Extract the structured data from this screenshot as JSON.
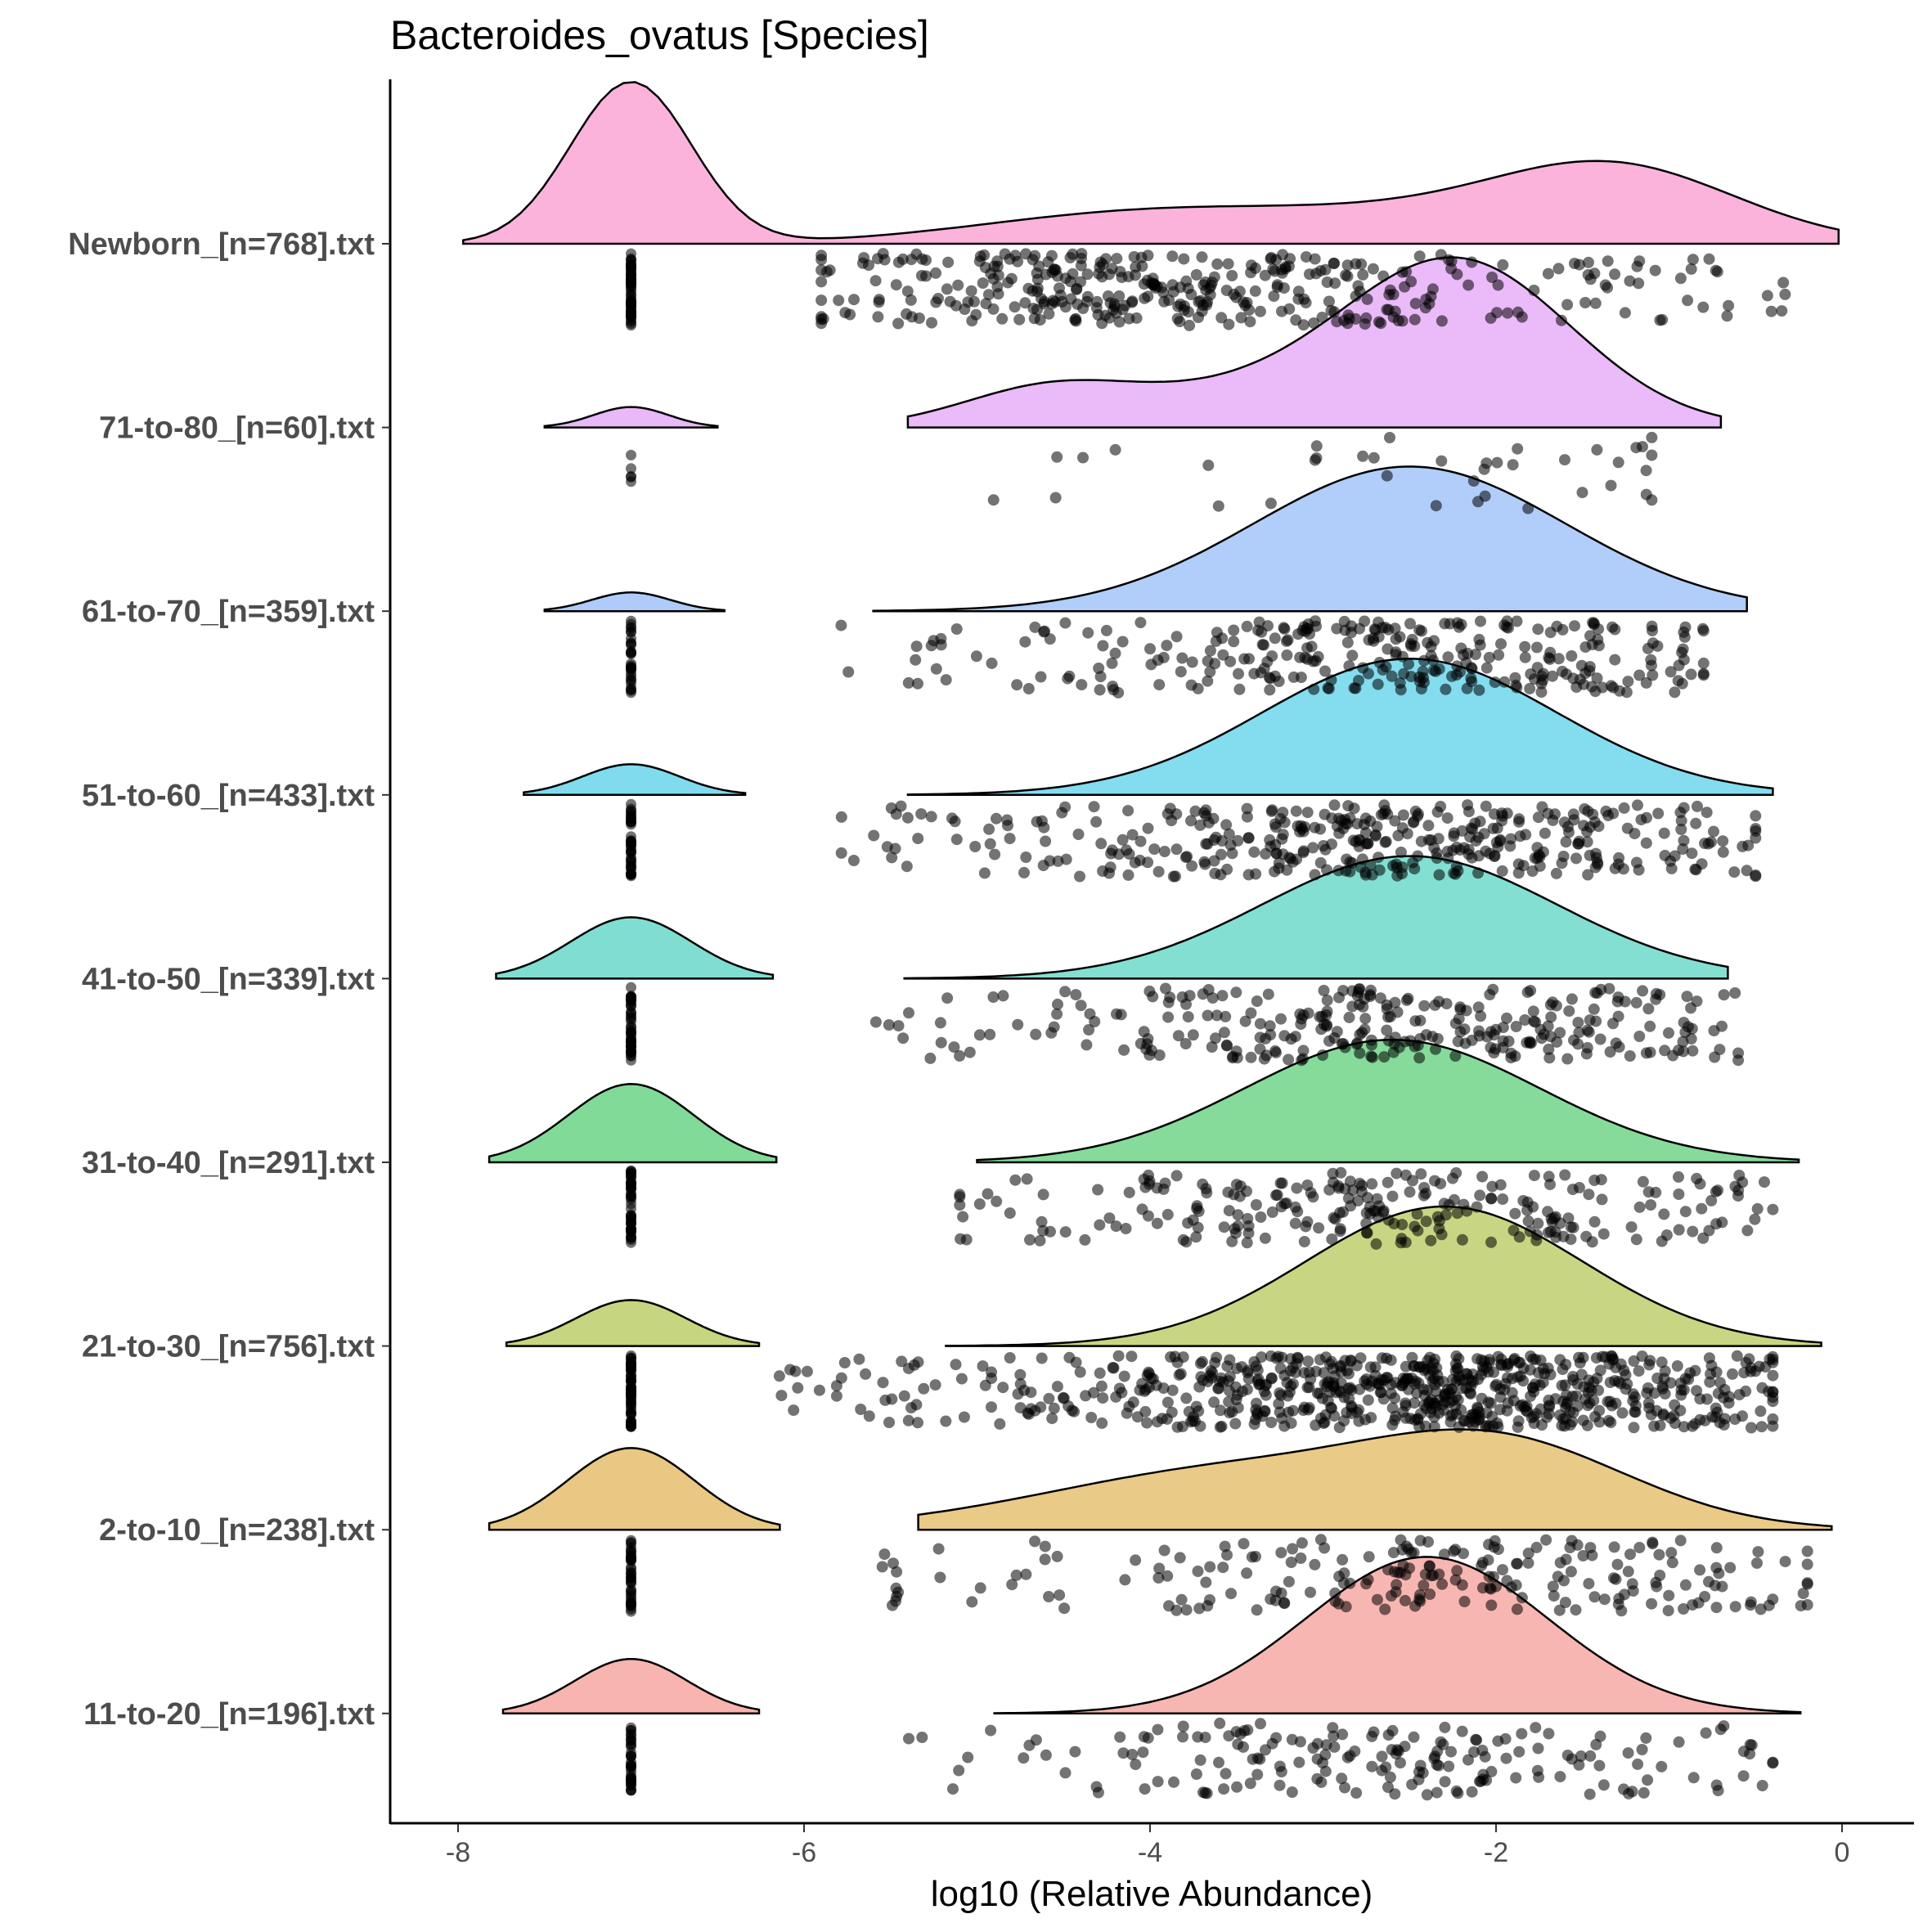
{
  "chart_data": {
    "type": "raincloud",
    "title": "Bacteroides_ovatus [Species]",
    "xlabel": "log10 (Relative Abundance)",
    "ylabel": "",
    "xlim": [
      -8.4,
      0.8
    ],
    "xticks": [
      -8,
      -6,
      -4,
      -2,
      0
    ],
    "xtick_labels": [
      "-8",
      "-6",
      "-4",
      "-2",
      "0"
    ],
    "grid": false,
    "legend": "none",
    "zero_value": -7,
    "groups": [
      {
        "label": "Newborn_[n=768].txt",
        "color": "#fbb3dc",
        "hi": 0.95,
        "lo_range": [
          -7.97,
          -0.02
        ],
        "hi_range": [
          -7.97,
          -0.02
        ],
        "lo": {
          "mu": -7.0,
          "sd": 0.35,
          "w": 0.42,
          "h": 0.0
        },
        "comps": [
          {
            "mu": -4.2,
            "sd": 0.9,
            "w": 0.12
          },
          {
            "mu": -1.3,
            "sd": 0.7,
            "w": 0.33
          },
          {
            "mu": -2.6,
            "sd": 1.0,
            "w": 0.13
          }
        ],
        "pts_min": -5.9,
        "pts_max": -0.3,
        "n_zero": 60,
        "n_pts": 380
      },
      {
        "label": "71-to-80_[n=60].txt",
        "color": "#e9b8f9",
        "hi": 1.0,
        "lo_range": [
          -7.5,
          -6.5
        ],
        "hi_range": [
          -5.4,
          -0.7
        ],
        "lo_peak": 0.12,
        "comps": [
          {
            "mu": -2.2,
            "sd": 0.65,
            "w": 0.7
          },
          {
            "mu": -4.6,
            "sd": 0.5,
            "w": 0.15
          },
          {
            "mu": -3.4,
            "sd": 0.8,
            "w": 0.15
          }
        ],
        "pts_min": -5.1,
        "pts_max": -1.1,
        "n_zero": 5,
        "n_pts": 38
      },
      {
        "label": "61-to-70_[n=359].txt",
        "color": "#aecbfa",
        "hi": 0.85,
        "lo_range": [
          -7.5,
          -6.46
        ],
        "hi_range": [
          -5.6,
          -0.55
        ],
        "lo_peak": 0.11,
        "comps": [
          {
            "mu": -2.5,
            "sd": 0.9,
            "w": 1.0
          }
        ],
        "pts_min": -5.8,
        "pts_max": -0.8,
        "n_zero": 30,
        "n_pts": 300
      },
      {
        "label": "51-to-60_[n=433].txt",
        "color": "#80dbee",
        "hi": 0.8,
        "lo_range": [
          -7.62,
          -6.34
        ],
        "hi_range": [
          -5.4,
          -0.4
        ],
        "lo_peak": 0.18,
        "comps": [
          {
            "mu": -2.5,
            "sd": 0.85,
            "w": 1.0
          }
        ],
        "pts_min": -5.8,
        "pts_max": -0.5,
        "n_zero": 40,
        "n_pts": 380
      },
      {
        "label": "41-to-50_[n=339].txt",
        "color": "#7fded1",
        "hi": 0.72,
        "lo_range": [
          -7.78,
          -6.18
        ],
        "hi_range": [
          -5.42,
          -0.66
        ],
        "lo_peak": 0.36,
        "comps": [
          {
            "mu": -2.5,
            "sd": 0.85,
            "w": 1.0
          }
        ],
        "pts_min": -5.6,
        "pts_max": -0.6,
        "n_zero": 45,
        "n_pts": 290
      },
      {
        "label": "31-to-40_[n=291].txt",
        "color": "#82da98",
        "hi": 0.72,
        "lo_range": [
          -7.82,
          -6.16
        ],
        "hi_range": [
          -5.0,
          -0.25
        ],
        "lo_peak": 0.46,
        "comps": [
          {
            "mu": -2.6,
            "sd": 0.85,
            "w": 1.0
          }
        ],
        "pts_min": -5.1,
        "pts_max": -0.4,
        "n_zero": 45,
        "n_pts": 250
      },
      {
        "label": "21-to-30_[n=756].txt",
        "color": "#c6d57f",
        "hi": 0.82,
        "lo_range": [
          -7.72,
          -6.26
        ],
        "hi_range": [
          -5.18,
          -0.12
        ],
        "lo_peak": 0.27,
        "comps": [
          {
            "mu": -2.3,
            "sd": 0.8,
            "w": 1.0
          }
        ],
        "pts_min": -6.2,
        "pts_max": -0.4,
        "n_zero": 60,
        "n_pts": 700
      },
      {
        "label": "2-to-10_[n=238].txt",
        "color": "#e8c882",
        "hi": 0.59,
        "lo_range": [
          -7.82,
          -6.14
        ],
        "hi_range": [
          -5.34,
          -0.06
        ],
        "lo_peak": 0.48,
        "comps": [
          {
            "mu": -1.95,
            "sd": 0.75,
            "w": 0.55
          },
          {
            "mu": -3.5,
            "sd": 1.1,
            "w": 0.45
          }
        ],
        "pts_min": -5.6,
        "pts_max": -0.2,
        "n_zero": 40,
        "n_pts": 220
      },
      {
        "label": "11-to-20_[n=196].txt",
        "color": "#f8b4af",
        "hi": 0.92,
        "lo_range": [
          -7.74,
          -6.26
        ],
        "hi_range": [
          -4.9,
          -0.24
        ],
        "lo_peak": 0.32,
        "comps": [
          {
            "mu": -2.4,
            "sd": 0.7,
            "w": 1.0
          }
        ],
        "pts_min": -5.4,
        "pts_max": -0.4,
        "n_zero": 35,
        "n_pts": 180
      }
    ]
  }
}
